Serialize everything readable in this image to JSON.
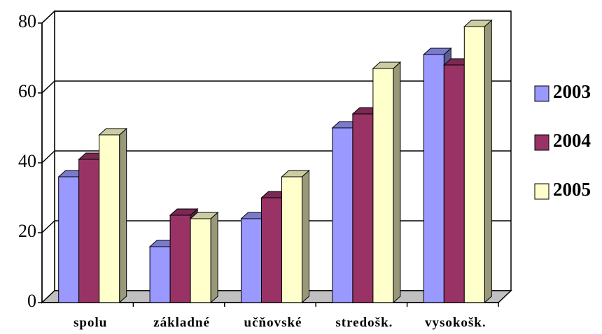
{
  "chart_data": {
    "type": "bar3d",
    "categories": [
      "spolu",
      "základné",
      "učňovské",
      "stredošk.",
      "vysokošk."
    ],
    "series": [
      {
        "name": "2003",
        "color": "#9999ff",
        "values": [
          36,
          16,
          24,
          50,
          71
        ]
      },
      {
        "name": "2004",
        "color": "#993366",
        "values": [
          41,
          25,
          30,
          54,
          68
        ]
      },
      {
        "name": "2005",
        "color": "#ffffcc",
        "values": [
          48,
          24,
          36,
          67,
          79
        ]
      }
    ],
    "ylim": [
      0,
      80
    ],
    "yticks": [
      0,
      20,
      40,
      60,
      80
    ],
    "grid": true,
    "legend": "right"
  }
}
